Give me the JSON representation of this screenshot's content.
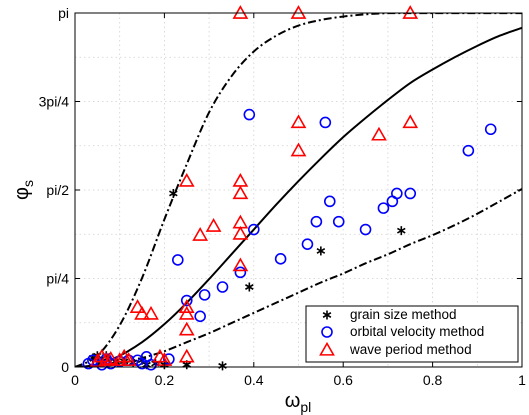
{
  "chart_data": {
    "type": "scatter",
    "title": "",
    "xlabel": "ω",
    "xlabel_sub": "pl",
    "ylabel": "φ",
    "ylabel_sub": "s",
    "xlim": [
      0,
      1
    ],
    "ylim": [
      0,
      3.14159
    ],
    "grid": true,
    "legend_position": "bottom-right",
    "x_ticks": [
      {
        "value": 0,
        "label": "0"
      },
      {
        "value": 0.2,
        "label": "0.2"
      },
      {
        "value": 0.4,
        "label": "0.4"
      },
      {
        "value": 0.6,
        "label": "0.6"
      },
      {
        "value": 0.8,
        "label": "0.8"
      },
      {
        "value": 1,
        "label": "1"
      }
    ],
    "y_ticks": [
      {
        "value": 0,
        "label": "0"
      },
      {
        "value": 0.7854,
        "label": "pi/4"
      },
      {
        "value": 1.5708,
        "label": "pi/2"
      },
      {
        "value": 2.3562,
        "label": "3pi/4"
      },
      {
        "value": 3.14159,
        "label": "pi"
      }
    ],
    "series": [
      {
        "name": "grain size method",
        "marker": "asterisk",
        "color": "#000000",
        "points": [
          [
            0.04,
            0.08
          ],
          [
            0.05,
            0.1
          ],
          [
            0.06,
            0.05
          ],
          [
            0.07,
            0.1
          ],
          [
            0.09,
            0.05
          ],
          [
            0.11,
            0.05
          ],
          [
            0.13,
            0.04
          ],
          [
            0.15,
            0.06
          ],
          [
            0.16,
            0.02
          ],
          [
            0.18,
            0.03
          ],
          [
            0.2,
            0.02
          ],
          [
            0.22,
            1.54
          ],
          [
            0.25,
            0.02
          ],
          [
            0.33,
            0.01
          ],
          [
            0.39,
            0.71
          ],
          [
            0.55,
            1.03
          ],
          [
            0.73,
            1.21
          ]
        ]
      },
      {
        "name": "orbital velocity method",
        "marker": "circle",
        "color": "#0000ff",
        "points": [
          [
            0.03,
            0.03
          ],
          [
            0.04,
            0.06
          ],
          [
            0.06,
            0.02
          ],
          [
            0.07,
            0.07
          ],
          [
            0.08,
            0.03
          ],
          [
            0.1,
            0.05
          ],
          [
            0.12,
            0.06
          ],
          [
            0.14,
            0.06
          ],
          [
            0.15,
            0.03
          ],
          [
            0.16,
            0.09
          ],
          [
            0.17,
            0.02
          ],
          [
            0.21,
            0.07
          ],
          [
            0.23,
            0.95
          ],
          [
            0.25,
            0.59
          ],
          [
            0.28,
            0.45
          ],
          [
            0.29,
            0.64
          ],
          [
            0.33,
            0.71
          ],
          [
            0.37,
            0.84
          ],
          [
            0.39,
            2.24
          ],
          [
            0.4,
            1.22
          ],
          [
            0.46,
            0.96
          ],
          [
            0.52,
            1.09
          ],
          [
            0.54,
            1.29
          ],
          [
            0.56,
            2.17
          ],
          [
            0.57,
            1.47
          ],
          [
            0.59,
            1.29
          ],
          [
            0.65,
            1.22
          ],
          [
            0.69,
            1.41
          ],
          [
            0.71,
            1.47
          ],
          [
            0.72,
            1.54
          ],
          [
            0.75,
            1.54
          ],
          [
            0.88,
            1.92
          ],
          [
            0.93,
            2.11
          ]
        ]
      },
      {
        "name": "wave period method",
        "marker": "triangle",
        "color": "#ff0000",
        "points": [
          [
            0.05,
            0.05
          ],
          [
            0.06,
            0.09
          ],
          [
            0.07,
            0.06
          ],
          [
            0.08,
            0.07
          ],
          [
            0.1,
            0.06
          ],
          [
            0.11,
            0.09
          ],
          [
            0.12,
            0.06
          ],
          [
            0.14,
            0.53
          ],
          [
            0.15,
            0.47
          ],
          [
            0.17,
            0.47
          ],
          [
            0.19,
            0.09
          ],
          [
            0.2,
            0.06
          ],
          [
            0.25,
            0.09
          ],
          [
            0.25,
            0.33
          ],
          [
            0.25,
            0.47
          ],
          [
            0.25,
            0.53
          ],
          [
            0.25,
            1.65
          ],
          [
            0.28,
            1.17
          ],
          [
            0.31,
            1.25
          ],
          [
            0.37,
            0.9
          ],
          [
            0.37,
            1.18
          ],
          [
            0.37,
            1.28
          ],
          [
            0.37,
            1.54
          ],
          [
            0.37,
            1.65
          ],
          [
            0.37,
            3.14
          ],
          [
            0.5,
            1.92
          ],
          [
            0.5,
            2.17
          ],
          [
            0.5,
            3.14
          ],
          [
            0.68,
            2.06
          ],
          [
            0.75,
            2.17
          ],
          [
            0.75,
            3.14
          ]
        ]
      }
    ],
    "reference_curves": [
      {
        "id": "solid-curve",
        "style": "solid",
        "x": [
          0,
          0.05,
          0.1,
          0.15,
          0.2,
          0.25,
          0.3,
          0.35,
          0.4,
          0.45,
          0.5,
          0.55,
          0.6,
          0.65,
          0.7,
          0.75,
          0.8,
          0.85,
          0.9,
          0.95,
          1
        ],
        "y": [
          0,
          0.02,
          0.1,
          0.22,
          0.38,
          0.57,
          0.78,
          1.0,
          1.22,
          1.44,
          1.65,
          1.85,
          2.04,
          2.21,
          2.37,
          2.52,
          2.64,
          2.75,
          2.85,
          2.94,
          3.01
        ]
      },
      {
        "id": "upper-dashdot-curve",
        "style": "dashdot",
        "x": [
          0,
          0.05,
          0.1,
          0.15,
          0.2,
          0.25,
          0.3,
          0.35,
          0.4,
          0.45,
          0.5,
          0.55,
          0.6,
          0.65,
          0.7,
          0.75,
          0.8,
          0.85,
          0.9,
          0.95,
          1
        ],
        "y": [
          0,
          0.1,
          0.37,
          0.79,
          1.31,
          1.8,
          2.26,
          2.58,
          2.8,
          2.94,
          3.03,
          3.08,
          3.11,
          3.13,
          3.14,
          3.14,
          3.14,
          3.14,
          3.14,
          3.14,
          3.14
        ]
      },
      {
        "id": "lower-dashdot-curve",
        "style": "dashdot",
        "x": [
          0,
          0.05,
          0.1,
          0.15,
          0.2,
          0.25,
          0.3,
          0.35,
          0.4,
          0.45,
          0.5,
          0.55,
          0.6,
          0.65,
          0.7,
          0.75,
          0.8,
          0.85,
          0.9,
          0.95,
          1
        ],
        "y": [
          0,
          0.005,
          0.03,
          0.08,
          0.14,
          0.22,
          0.3,
          0.39,
          0.48,
          0.57,
          0.66,
          0.75,
          0.83,
          0.92,
          1.0,
          1.09,
          1.17,
          1.26,
          1.36,
          1.47,
          1.58
        ]
      }
    ]
  }
}
